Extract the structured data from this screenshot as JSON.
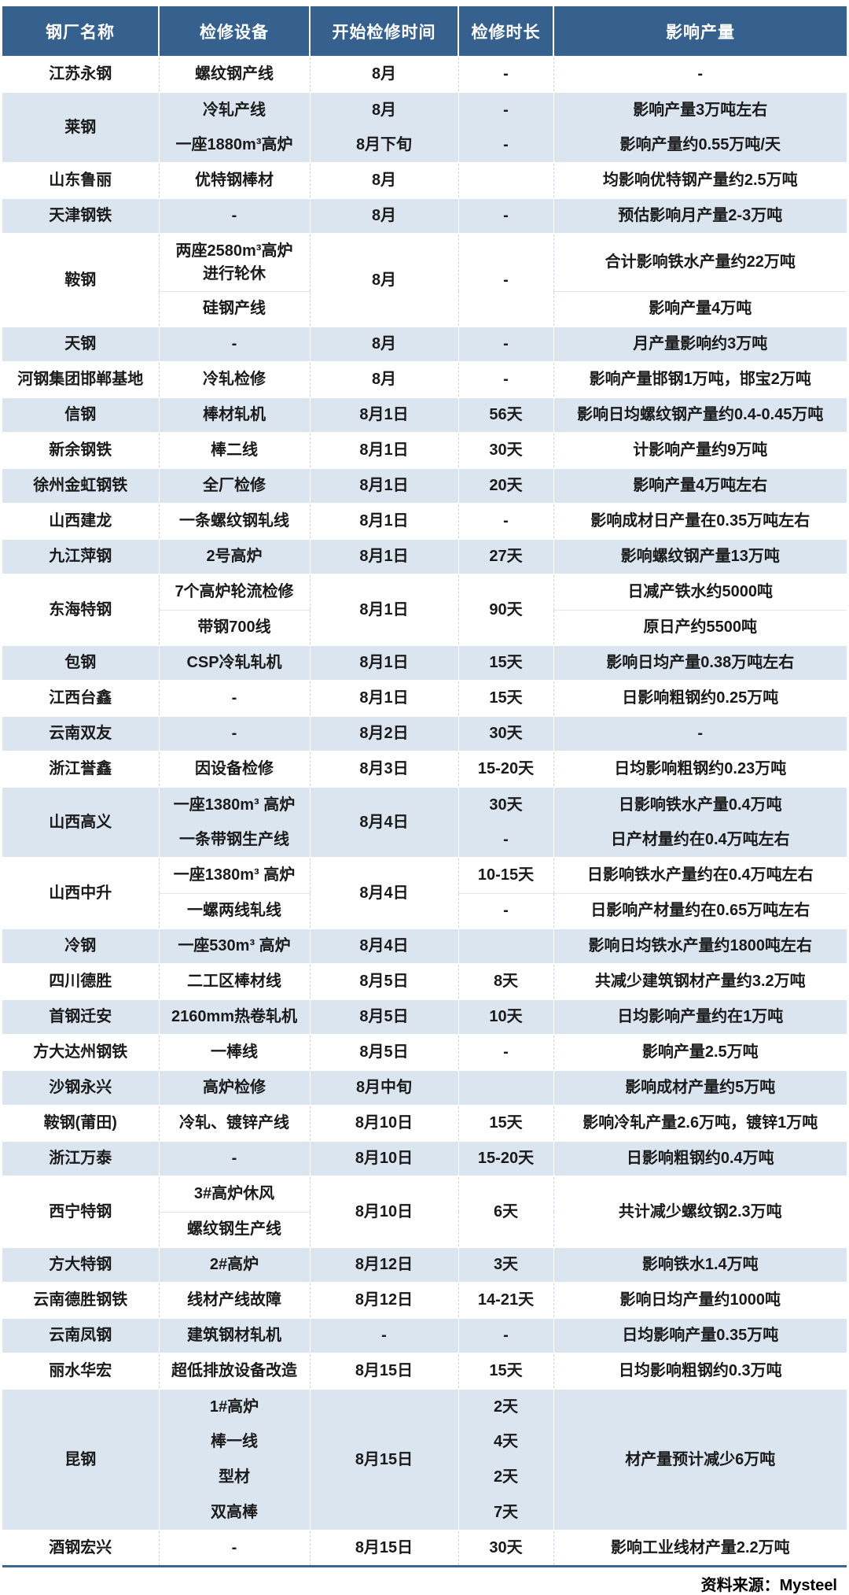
{
  "source": "资料来源：Mysteel",
  "colors": {
    "header_bg": "#36618f",
    "row_alt_blue": "#dbe5f0",
    "bottom_border": "#3a6597",
    "text": "#1a1a1a"
  },
  "table": {
    "columns": [
      "钢厂名称",
      "检修设备",
      "开始检修时间",
      "检修时长",
      "影响产量"
    ],
    "bands": [
      {
        "name": "江苏永钢",
        "equipment": "螺纹钢产线",
        "time": "8月",
        "duration": "-",
        "impact": "-"
      },
      {
        "name": "莱钢",
        "equipment": [
          "冷轧产线",
          "一座1880m³高炉"
        ],
        "time": [
          "8月",
          "8月下旬"
        ],
        "duration": [
          "-",
          "-"
        ],
        "impact": [
          "影响产量3万吨左右",
          "影响产量约0.55万吨/天"
        ]
      },
      {
        "name": "山东鲁丽",
        "equipment": "优特钢棒材",
        "time": "8月",
        "duration": "",
        "impact": "均影响优特钢产量约2.5万吨"
      },
      {
        "name": "天津钢铁",
        "equipment": "-",
        "time": "8月",
        "duration": "-",
        "impact": "预估影响月产量2-3万吨"
      },
      {
        "name": "鞍钢",
        "equipment": [
          "两座2580m³高炉\n进行轮休",
          "硅钢产线"
        ],
        "time": "8月",
        "duration": "-",
        "impact": [
          "合计影响铁水产量约22万吨",
          "影响产量4万吨"
        ],
        "heights": [
          73,
          45
        ]
      },
      {
        "name": "天钢",
        "equipment": "-",
        "time": "8月",
        "duration": "-",
        "impact": "月产量影响约3万吨"
      },
      {
        "name": "河钢集团邯郸基地",
        "equipment": "冷轧检修",
        "time": "8月",
        "duration": "-",
        "impact": "影响产量邯钢1万吨，邯宝2万吨"
      },
      {
        "name": "信钢",
        "equipment": "棒材轧机",
        "time": "8月1日",
        "duration": "56天",
        "impact": "影响日均螺纹钢产量约0.4-0.45万吨"
      },
      {
        "name": "新余钢铁",
        "equipment": "棒二线",
        "time": "8月1日",
        "duration": "30天",
        "impact": "计影响产量约9万吨"
      },
      {
        "name": "徐州金虹钢铁",
        "equipment": "全厂检修",
        "time": "8月1日",
        "duration": "20天",
        "impact": "影响产量4万吨左右"
      },
      {
        "name": "山西建龙",
        "equipment": "一条螺纹钢轧线",
        "time": "8月1日",
        "duration": "-",
        "impact": "影响成材日产量在0.35万吨左右"
      },
      {
        "name": "九江萍钢",
        "equipment": "2号高炉",
        "time": "8月1日",
        "duration": "27天",
        "impact": "影响螺纹钢产量13万吨"
      },
      {
        "name": "东海特钢",
        "equipment": [
          "7个高炉轮流检修",
          "带钢700线"
        ],
        "time": "8月1日",
        "duration": "90天",
        "impact": [
          "日减产铁水约5000吨",
          "原日产约5500吨"
        ]
      },
      {
        "name": "包钢",
        "equipment": "CSP冷轧轧机",
        "time": "8月1日",
        "duration": "15天",
        "impact": "影响日均产量0.38万吨左右"
      },
      {
        "name": "江西台鑫",
        "equipment": "-",
        "time": "8月1日",
        "duration": "15天",
        "impact": "日影响粗钢约0.25万吨"
      },
      {
        "name": "云南双友",
        "equipment": "-",
        "time": "8月2日",
        "duration": "30天",
        "impact": "-"
      },
      {
        "name": "浙江誉鑫",
        "equipment": "因设备检修",
        "time": "8月3日",
        "duration": "15-20天",
        "impact": "日均影响粗钢约0.23万吨"
      },
      {
        "name": "山西高义",
        "equipment": [
          "一座1380m³ 高炉",
          "一条带钢生产线"
        ],
        "time": "8月4日",
        "duration": [
          "30天",
          "-"
        ],
        "impact": [
          "日影响铁水产量0.4万吨",
          "日产材量约在0.4万吨左右"
        ]
      },
      {
        "name": "山西中升",
        "equipment": [
          "一座1380m³ 高炉",
          "一螺两线轧线"
        ],
        "time": "8月4日",
        "duration": [
          "10-15天",
          "-"
        ],
        "impact": [
          "日影响铁水产量约在0.4万吨左右",
          "日影响产材量约在0.65万吨左右"
        ]
      },
      {
        "name": "冷钢",
        "equipment": "一座530m³ 高炉",
        "time": "8月4日",
        "duration": "",
        "impact": "影响日均铁水产量约1800吨左右"
      },
      {
        "name": "四川德胜",
        "equipment": "二工区棒材线",
        "time": "8月5日",
        "duration": "8天",
        "impact": "共减少建筑钢材产量约3.2万吨"
      },
      {
        "name": "首钢迁安",
        "equipment": "2160mm热卷轧机",
        "time": "8月5日",
        "duration": "10天",
        "impact": "日均影响产量约在1万吨"
      },
      {
        "name": "方大达州钢铁",
        "equipment": "一棒线",
        "time": "8月5日",
        "duration": "-",
        "impact": "影响产量2.5万吨"
      },
      {
        "name": "沙钢永兴",
        "equipment": "高炉检修",
        "time": "8月中旬",
        "duration": "",
        "impact": "影响成材产量约5万吨"
      },
      {
        "name": "鞍钢(莆田)",
        "equipment": "冷轧、镀锌产线",
        "time": "8月10日",
        "duration": "15天",
        "impact": "影响冷轧产量2.6万吨，镀锌1万吨"
      },
      {
        "name": "浙江万泰",
        "equipment": "-",
        "time": "8月10日",
        "duration": "15-20天",
        "impact": "日影响粗钢约0.4万吨"
      },
      {
        "name": "西宁特钢",
        "equipment": [
          "3#高炉休风",
          "螺纹钢生产线"
        ],
        "time": "8月10日",
        "duration": "6天",
        "impact": "共计减少螺纹钢2.3万吨"
      },
      {
        "name": "方大特钢",
        "equipment": "2#高炉",
        "time": "8月12日",
        "duration": "3天",
        "impact": "影响铁水1.4万吨"
      },
      {
        "name": "云南德胜钢铁",
        "equipment": "线材产线故障",
        "time": "8月12日",
        "duration": "14-21天",
        "impact": "影响日均产量约1000吨"
      },
      {
        "name": "云南凤钢",
        "equipment": "建筑钢材轧机",
        "time": "-",
        "duration": "-",
        "impact": "日均影响产量0.35万吨"
      },
      {
        "name": "丽水华宏",
        "equipment": "超低排放设备改造",
        "time": "8月15日",
        "duration": "15天",
        "impact": "日均影响粗钢约0.3万吨"
      },
      {
        "name": "昆钢",
        "equipment": [
          "1#高炉",
          "棒一线",
          "型材",
          "双高棒"
        ],
        "time": "8月15日",
        "duration": [
          "2天",
          "4天",
          "2天",
          "7天"
        ],
        "impact": "材产量预计减少6万吨"
      },
      {
        "name": "酒钢宏兴",
        "equipment": "-",
        "time": "8月15日",
        "duration": "30天",
        "impact": "影响工业线材产量2.2万吨"
      }
    ]
  }
}
